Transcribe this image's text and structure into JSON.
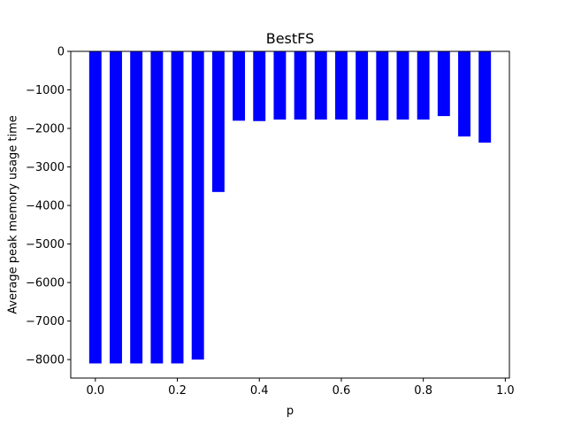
{
  "chart_data": {
    "type": "bar",
    "title": "BestFS",
    "xlabel": "p",
    "ylabel": "Average peak memory usage time",
    "x": [
      0.0,
      0.05,
      0.1,
      0.15,
      0.2,
      0.25,
      0.3,
      0.35,
      0.4,
      0.45,
      0.5,
      0.55,
      0.6,
      0.65,
      0.7,
      0.75,
      0.8,
      0.85,
      0.9,
      0.95
    ],
    "values": [
      -8100,
      -8100,
      -8100,
      -8100,
      -8100,
      -8000,
      -3650,
      -1800,
      -1810,
      -1770,
      -1770,
      -1770,
      -1770,
      -1770,
      -1790,
      -1770,
      -1770,
      -1680,
      -2210,
      -2370
    ],
    "bar_width": 0.03,
    "xlim": [
      -0.06,
      1.01
    ],
    "ylim": [
      -8480,
      0
    ],
    "xticks": [
      0.0,
      0.2,
      0.4,
      0.6,
      0.8,
      1.0
    ],
    "xtick_labels": [
      "0.0",
      "0.2",
      "0.4",
      "0.6",
      "0.8",
      "1.0"
    ],
    "yticks": [
      0,
      -1000,
      -2000,
      -3000,
      -4000,
      -5000,
      -6000,
      -7000,
      -8000
    ],
    "ytick_labels": [
      "0",
      "−1000",
      "−2000",
      "−3000",
      "−4000",
      "−5000",
      "−6000",
      "−7000",
      "−8000"
    ],
    "bar_color": "#0000ff",
    "grid": false,
    "legend": "none"
  }
}
